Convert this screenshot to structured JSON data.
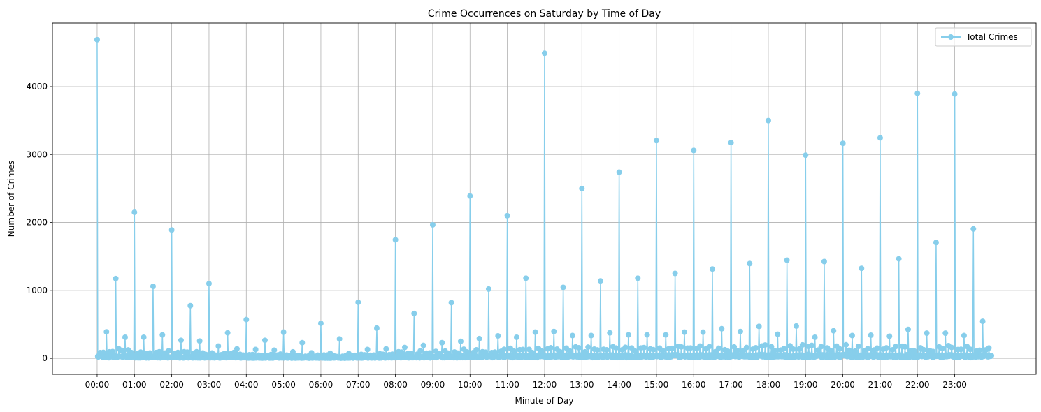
{
  "chart_data": {
    "type": "line",
    "title": "Crime Occurrences on Saturday by Time of Day",
    "xlabel": "Minute of Day",
    "ylabel": "Number of Crimes",
    "xlim": [
      -71.95,
      1510.95
    ],
    "ylim": [
      -235,
      4935
    ],
    "yticks": [
      0,
      1000,
      2000,
      3000,
      4000
    ],
    "xticks": [
      0,
      60,
      120,
      180,
      240,
      300,
      360,
      420,
      480,
      540,
      600,
      660,
      720,
      780,
      840,
      900,
      960,
      1020,
      1080,
      1140,
      1200,
      1260,
      1320,
      1380
    ],
    "xtick_labels": [
      "00:00",
      "01:00",
      "02:00",
      "03:00",
      "04:00",
      "05:00",
      "06:00",
      "07:00",
      "08:00",
      "09:00",
      "10:00",
      "11:00",
      "12:00",
      "13:00",
      "14:00",
      "15:00",
      "16:00",
      "17:00",
      "18:00",
      "19:00",
      "20:00",
      "21:00",
      "22:00",
      "23:00"
    ],
    "grid": true,
    "legend_position": "upper right",
    "series": [
      {
        "name": "Total Crimes",
        "color": "#87ceeb",
        "marker": "circle",
        "hourly_peaks": [
          4690,
          2150,
          1890,
          1100,
          570,
          385,
          515,
          825,
          1745,
          1965,
          2390,
          2100,
          4490,
          2500,
          2740,
          3205,
          3060,
          3175,
          3500,
          2990,
          3165,
          3245,
          3900,
          3890
        ],
        "half_hour_peaks": [
          1175,
          1060,
          775,
          375,
          265,
          230,
          285,
          445,
          660,
          820,
          1020,
          1180,
          1045,
          1140,
          1180,
          1250,
          1315,
          1395,
          1445,
          1425,
          1325,
          1465,
          1705,
          1905
        ],
        "quarter_hour_peaks": [
          [
            390,
            310
          ],
          [
            310,
            345
          ],
          [
            265,
            255
          ],
          [
            180,
            140
          ],
          [
            130,
            120
          ],
          [
            95,
            80
          ],
          [
            75,
            70
          ],
          [
            130,
            140
          ],
          [
            160,
            190
          ],
          [
            230,
            250
          ],
          [
            290,
            330
          ],
          [
            310,
            385
          ],
          [
            395,
            335
          ],
          [
            335,
            375
          ],
          [
            345,
            345
          ],
          [
            345,
            385
          ],
          [
            385,
            435
          ],
          [
            395,
            470
          ],
          [
            355,
            475
          ],
          [
            310,
            405
          ],
          [
            335,
            340
          ],
          [
            325,
            425
          ],
          [
            370,
            370
          ],
          [
            335,
            545
          ]
        ],
        "noise_base": [
          60,
          45,
          40,
          35,
          25,
          20,
          20,
          30,
          45,
          55,
          60,
          65,
          70,
          70,
          70,
          75,
          75,
          80,
          80,
          80,
          80,
          80,
          75,
          70
        ]
      }
    ]
  }
}
